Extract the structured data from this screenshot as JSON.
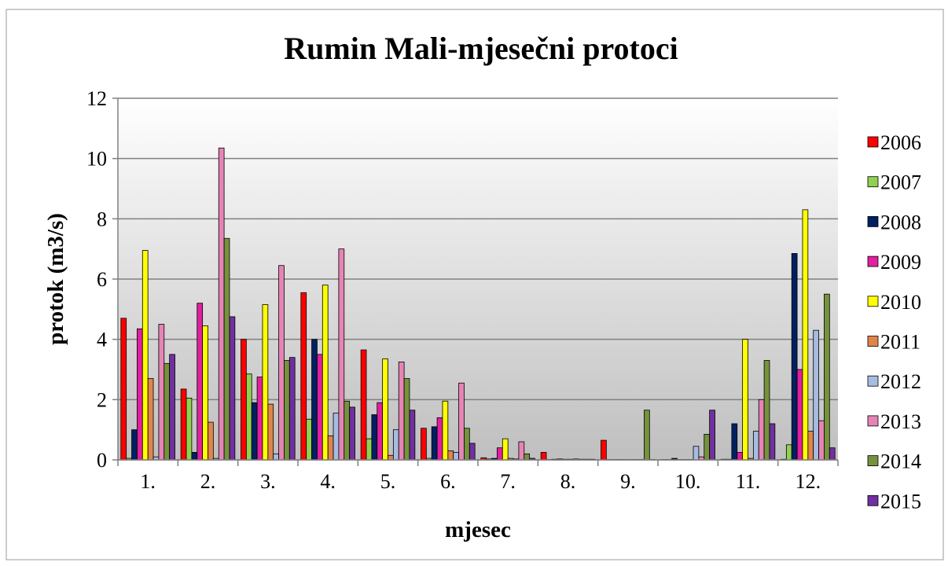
{
  "chart_data": {
    "type": "bar",
    "title": "Rumin Mali-mjesečni protoci",
    "xlabel": "mjesec",
    "ylabel": "protok (m3/s)",
    "categories": [
      "1.",
      "2.",
      "3.",
      "4.",
      "5.",
      "6.",
      "7.",
      "8.",
      "9.",
      "10.",
      "11.",
      "12."
    ],
    "ylim": [
      0,
      12
    ],
    "yticks": [
      0,
      2,
      4,
      6,
      8,
      10,
      12
    ],
    "grid": true,
    "legend": "right",
    "series": [
      {
        "name": "2006",
        "color": "#ff0000",
        "values": [
          4.7,
          2.35,
          4.0,
          5.55,
          3.65,
          1.05,
          0.07,
          0.25,
          0.65,
          0.01,
          0.02,
          0.02
        ]
      },
      {
        "name": "2007",
        "color": "#92d050",
        "values": [
          0.05,
          2.05,
          2.85,
          1.35,
          0.7,
          0.05,
          0.03,
          0.01,
          0.01,
          0.01,
          0.02,
          0.5
        ]
      },
      {
        "name": "2008",
        "color": "#002060",
        "values": [
          1.0,
          0.25,
          1.9,
          4.0,
          1.5,
          1.1,
          0.05,
          0.02,
          0.01,
          0.05,
          1.2,
          6.85
        ]
      },
      {
        "name": "2009",
        "color": "#e020a0",
        "values": [
          4.35,
          5.2,
          2.75,
          3.5,
          1.9,
          1.4,
          0.4,
          0.03,
          0.01,
          0.01,
          0.25,
          3.0
        ]
      },
      {
        "name": "2010",
        "color": "#ffff00",
        "values": [
          6.95,
          4.45,
          5.15,
          5.8,
          3.35,
          1.95,
          0.7,
          0.02,
          0.01,
          0.01,
          4.0,
          8.3
        ]
      },
      {
        "name": "2011",
        "color": "#e0854a",
        "values": [
          2.7,
          1.25,
          1.85,
          0.8,
          0.15,
          0.3,
          0.05,
          0.02,
          0.01,
          0.01,
          0.05,
          0.95
        ]
      },
      {
        "name": "2012",
        "color": "#a6bce0",
        "values": [
          0.1,
          0.05,
          0.2,
          1.55,
          1.0,
          0.25,
          0.03,
          0.03,
          0.01,
          0.45,
          0.95,
          4.3
        ]
      },
      {
        "name": "2013",
        "color": "#e585b5",
        "values": [
          4.5,
          10.35,
          6.45,
          7.0,
          3.25,
          2.55,
          0.6,
          0.02,
          0.01,
          0.1,
          2.0,
          1.3
        ]
      },
      {
        "name": "2014",
        "color": "#76923c",
        "values": [
          3.2,
          7.35,
          3.3,
          1.95,
          2.7,
          1.05,
          0.2,
          0.02,
          1.65,
          0.85,
          3.3,
          5.5
        ]
      },
      {
        "name": "2015",
        "color": "#7030a0",
        "values": [
          3.5,
          4.75,
          3.4,
          1.75,
          1.65,
          0.55,
          0.05,
          0.02,
          0.01,
          1.65,
          1.2,
          0.4
        ]
      }
    ]
  }
}
